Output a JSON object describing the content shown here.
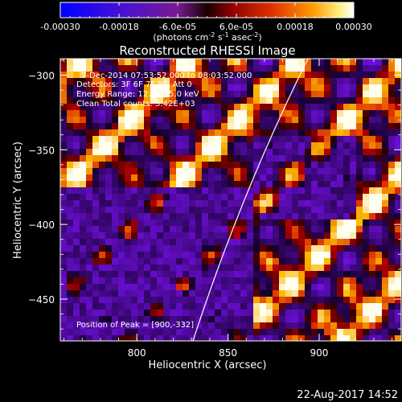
{
  "colorbar": {
    "tick_labels": [
      "-0.00030",
      "-0.00018",
      "-6.0e-05",
      "6.0e-05",
      "0.00018",
      "0.00030"
    ],
    "unit_base": "(photons cm",
    "unit_exp1": "-2",
    "unit_mid": " s",
    "unit_exp2": "-1",
    "unit_end": " asec",
    "unit_exp3": "-2",
    "unit_close": ")"
  },
  "plot": {
    "title": "Reconstructed RHESSI Image",
    "xlabel": "Heliocentric X (arcsec)",
    "ylabel": "Heliocentric Y (arcsec)",
    "x_ticks": [
      "800",
      "850",
      "900"
    ],
    "y_ticks": [
      "-300",
      "-350",
      "-400",
      "-450"
    ],
    "xlim": [
      758,
      945
    ],
    "ylim": [
      -478,
      -289
    ]
  },
  "annotation": {
    "time_range": "7-Dec-2014 07:53:52.000 to 08:03:52.000",
    "detectors": "Detectors: 3F 6F 7F 9F, Att 0",
    "energy": "Energy Range: 12.0 - 25.0 keV",
    "clean": "Clean     Total counts: 5.42E+03",
    "peak": "Position of Peak = [900,-332]"
  },
  "footer": {
    "timestamp": "22-Aug-2017 14:52"
  }
}
